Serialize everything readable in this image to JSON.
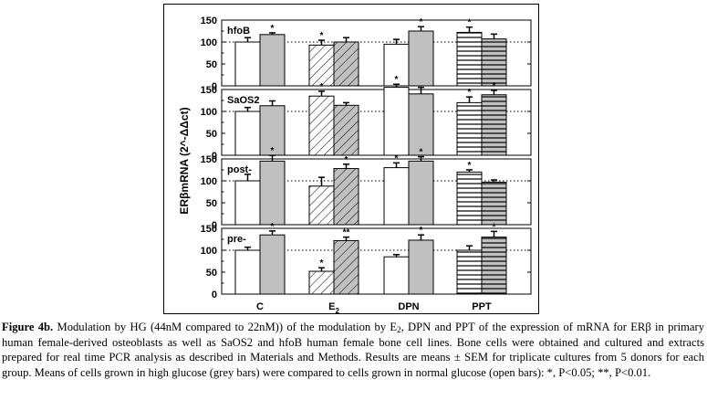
{
  "chart_data": {
    "type": "bar",
    "ylabel": "ERβmRNA (2^-ΔΔct)",
    "categories": [
      "C",
      "E2",
      "DPN",
      "PPT"
    ],
    "category_display": [
      {
        "main": "C",
        "sub": ""
      },
      {
        "main": "E",
        "sub": "2"
      },
      {
        "main": "DPN",
        "sub": ""
      },
      {
        "main": "PPT",
        "sub": ""
      }
    ],
    "ylim": [
      0,
      150
    ],
    "yticks": [
      0,
      50,
      100,
      150
    ],
    "reference_line": 100,
    "grid": false,
    "bar_styles": {
      "open": {
        "fill": "#ffffff"
      },
      "grey": {
        "fill": "#c0c0c0"
      },
      "hatch": "diagonal lines for E2, horizontal lines for PPT"
    },
    "panels": [
      {
        "label": "hfoB",
        "series": [
          {
            "values": [
              100,
              93,
              95,
              122
            ],
            "errors": [
              10,
              11,
              11,
              12
            ],
            "stars": [
              "",
              "*",
              "",
              "*"
            ]
          },
          {
            "values": [
              117,
              100,
              125,
              107
            ],
            "errors": [
              4,
              10,
              10,
              11
            ],
            "stars": [
              "*",
              "",
              "*",
              ""
            ]
          }
        ]
      },
      {
        "label": "SaOS2",
        "series": [
          {
            "values": [
              100,
              135,
              155,
              120
            ],
            "errors": [
              9,
              11,
              7,
              13
            ],
            "stars": [
              "",
              "*",
              "*",
              "*"
            ]
          },
          {
            "values": [
              113,
              114,
              140,
              138
            ],
            "errors": [
              11,
              6,
              15,
              10
            ],
            "stars": [
              "",
              "",
              "",
              "*"
            ]
          }
        ]
      },
      {
        "label": "post-",
        "series": [
          {
            "values": [
              100,
              88,
              130,
              120
            ],
            "errors": [
              15,
              20,
              11,
              5
            ],
            "stars": [
              "",
              "",
              "*",
              "*"
            ]
          },
          {
            "values": [
              145,
              128,
              145,
              97
            ],
            "errors": [
              13,
              10,
              10,
              5
            ],
            "stars": [
              "*",
              "*",
              "*",
              ""
            ]
          }
        ]
      },
      {
        "label": "pre-",
        "series": [
          {
            "values": [
              100,
              52,
              85,
              100
            ],
            "errors": [
              7,
              8,
              5,
              10
            ],
            "stars": [
              "",
              "*",
              "",
              ""
            ]
          },
          {
            "values": [
              135,
              122,
              123,
              130
            ],
            "errors": [
              9,
              8,
              12,
              13
            ],
            "stars": [
              "*",
              "**",
              "*",
              "*"
            ]
          }
        ]
      }
    ]
  },
  "caption": {
    "label": "Figure 4b.",
    "part1": " Modulation by HG (44nM compared to 22nM)) of the modulation by E",
    "sub1": "2",
    "part2": ", DPN and PPT of the expression of mRNA for ERβ in primary human female-derived osteoblasts as well as SaOS2 and hfoB human female bone cell lines. Bone cells were obtained and cultured and extracts prepared for real time PCR analysis as described in Materials and Methods. Results are means ± SEM for triplicate cultures from 5 donors for each group. Means of cells grown in high glucose (grey bars) were compared to cells grown in normal glucose (open bars): *, P<0.05; **, P<0.01."
  }
}
